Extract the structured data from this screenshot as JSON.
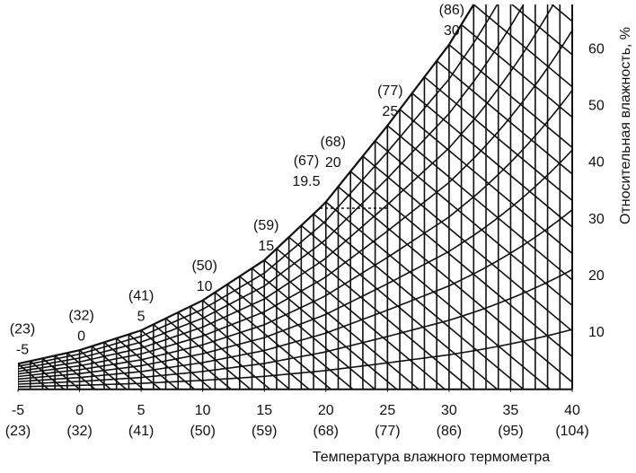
{
  "chart_data": {
    "type": "psychrometric",
    "x_axis_label": "Температура влажного термометра",
    "y_axis_label": "Относительная влажность, %",
    "xlim": [
      -5,
      40
    ],
    "xticks": [
      -5,
      0,
      5,
      10,
      15,
      20,
      25,
      30,
      35,
      40
    ],
    "xtick_fahrenheit": [
      "(23)",
      "(32)",
      "(41)",
      "(50)",
      "(59)",
      "(68)",
      "(77)",
      "(86)",
      "(95)",
      "(104)"
    ],
    "ylim": [
      -1,
      68
    ],
    "yticks": [
      10,
      20,
      30,
      40,
      50,
      60
    ],
    "saturation": {
      "x": [
        -5,
        0,
        5,
        10,
        15,
        19.5,
        20,
        25,
        30,
        32
      ],
      "values": [
        4.5,
        6.9,
        10.4,
        15.7,
        22.8,
        32.0,
        33.1,
        46.6,
        60.9,
        68
      ],
      "fahrenheit": [
        "(23)",
        "(32)",
        "(41)",
        "(50)",
        "(59)",
        "(67)",
        "(68)",
        "(77)",
        "(86)",
        null
      ]
    },
    "color": "#111111"
  }
}
